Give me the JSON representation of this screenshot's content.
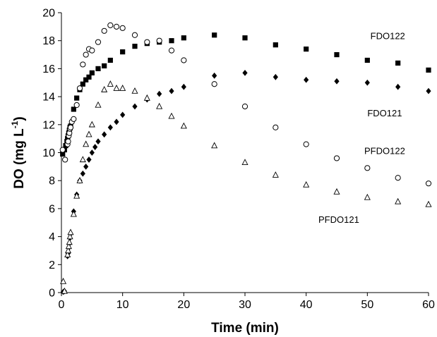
{
  "chart_data": {
    "type": "scatter",
    "title": "",
    "xlabel": "Time (min)",
    "ylabel": "DO (mg L-1)",
    "ylabel_main": "DO (mg L",
    "ylabel_sup": "-1",
    "ylabel_close": ")",
    "xlim": [
      0,
      60
    ],
    "ylim": [
      0,
      20
    ],
    "xticks": [
      0,
      10,
      20,
      30,
      40,
      50,
      60
    ],
    "yticks": [
      0,
      2,
      4,
      6,
      8,
      10,
      12,
      14,
      16,
      18,
      20
    ],
    "grid": false,
    "legend": "none (series labelled directly in plot)",
    "series": [
      {
        "name": "FDO122",
        "marker": "filled-square",
        "color": "#000000",
        "x": [
          0.2,
          0.5,
          0.7,
          0.9,
          1.0,
          1.1,
          1.2,
          1.3,
          1.4,
          1.5,
          2.0,
          2.5,
          3.0,
          3.5,
          4.0,
          4.5,
          5.0,
          6.0,
          7.0,
          8.0,
          10.0,
          12.0,
          14.0,
          16.0,
          18.0,
          20.0,
          25.0,
          30.0,
          35.0,
          40.0,
          45.0,
          50.0,
          55.0,
          60.0
        ],
        "y": [
          9.9,
          10.2,
          10.5,
          10.8,
          11.0,
          11.2,
          11.4,
          11.6,
          11.8,
          11.9,
          13.1,
          13.9,
          14.5,
          14.9,
          15.2,
          15.4,
          15.7,
          16.0,
          16.2,
          16.6,
          17.2,
          17.6,
          17.8,
          17.9,
          18.0,
          18.2,
          18.4,
          18.2,
          17.7,
          17.4,
          17.0,
          16.6,
          16.4,
          15.9
        ]
      },
      {
        "name": "FDO121",
        "marker": "filled-diamond",
        "color": "#000000",
        "x": [
          0.3,
          0.5,
          1.0,
          1.1,
          1.2,
          1.3,
          1.4,
          1.5,
          2.0,
          2.5,
          3.0,
          3.5,
          4.0,
          4.5,
          5.0,
          5.5,
          6.0,
          7.0,
          8.0,
          9.0,
          10.0,
          12.0,
          14.0,
          16.0,
          18.0,
          20.0,
          25.0,
          30.0,
          35.0,
          40.0,
          45.0,
          50.0,
          55.0,
          60.0
        ],
        "y": [
          0.05,
          0.1,
          2.6,
          2.8,
          3.2,
          3.5,
          3.9,
          4.2,
          5.8,
          7.0,
          8.0,
          8.5,
          9.0,
          9.5,
          10.0,
          10.4,
          10.8,
          11.3,
          11.8,
          12.2,
          12.7,
          13.3,
          13.8,
          14.2,
          14.4,
          14.7,
          15.5,
          15.7,
          15.4,
          15.2,
          15.1,
          15.0,
          14.7,
          14.4
        ]
      },
      {
        "name": "PFDO122",
        "marker": "open-circle",
        "color": "#000000",
        "x": [
          0.2,
          0.6,
          1.0,
          1.1,
          1.2,
          1.3,
          1.4,
          1.5,
          1.7,
          2.0,
          2.5,
          3.0,
          3.5,
          4.0,
          4.5,
          5.0,
          6.0,
          7.0,
          8.0,
          9.0,
          10.0,
          12.0,
          14.0,
          16.0,
          18.0,
          20.0,
          25.0,
          30.0,
          35.0,
          40.0,
          45.0,
          50.0,
          55.0,
          60.0
        ],
        "y": [
          10.2,
          9.5,
          10.6,
          10.8,
          11.2,
          11.4,
          11.7,
          11.8,
          12.2,
          12.4,
          13.4,
          14.6,
          16.3,
          17.0,
          17.4,
          17.3,
          17.9,
          18.7,
          19.1,
          19.0,
          18.9,
          18.4,
          17.9,
          18.0,
          17.3,
          16.6,
          14.9,
          13.3,
          11.8,
          10.6,
          9.6,
          8.9,
          8.2,
          7.8
        ]
      },
      {
        "name": "PFDO121",
        "marker": "open-triangle",
        "color": "#000000",
        "x": [
          0.3,
          0.5,
          1.0,
          1.1,
          1.2,
          1.3,
          1.4,
          1.5,
          2.0,
          2.5,
          3.0,
          3.5,
          4.0,
          4.5,
          5.0,
          6.0,
          7.0,
          8.0,
          9.0,
          10.0,
          12.0,
          14.0,
          16.0,
          18.0,
          20.0,
          25.0,
          30.0,
          35.0,
          40.0,
          45.0,
          50.0,
          55.0,
          60.0
        ],
        "y": [
          0.8,
          0.1,
          2.7,
          3.0,
          3.3,
          3.6,
          4.0,
          4.3,
          5.6,
          6.9,
          8.0,
          9.5,
          10.6,
          11.3,
          12.0,
          13.4,
          14.5,
          14.9,
          14.6,
          14.6,
          14.4,
          13.9,
          13.3,
          12.6,
          11.9,
          10.5,
          9.3,
          8.4,
          7.7,
          7.2,
          6.8,
          6.5,
          6.3
        ]
      }
    ],
    "annotations": [
      {
        "text": "FDO122",
        "x": 50.5,
        "y": 18.1
      },
      {
        "text": "FDO121",
        "x": 50.0,
        "y": 12.6
      },
      {
        "text": "PFDO122",
        "x": 49.5,
        "y": 9.9
      },
      {
        "text": "PFDO121",
        "x": 42.0,
        "y": 5.0
      }
    ]
  }
}
